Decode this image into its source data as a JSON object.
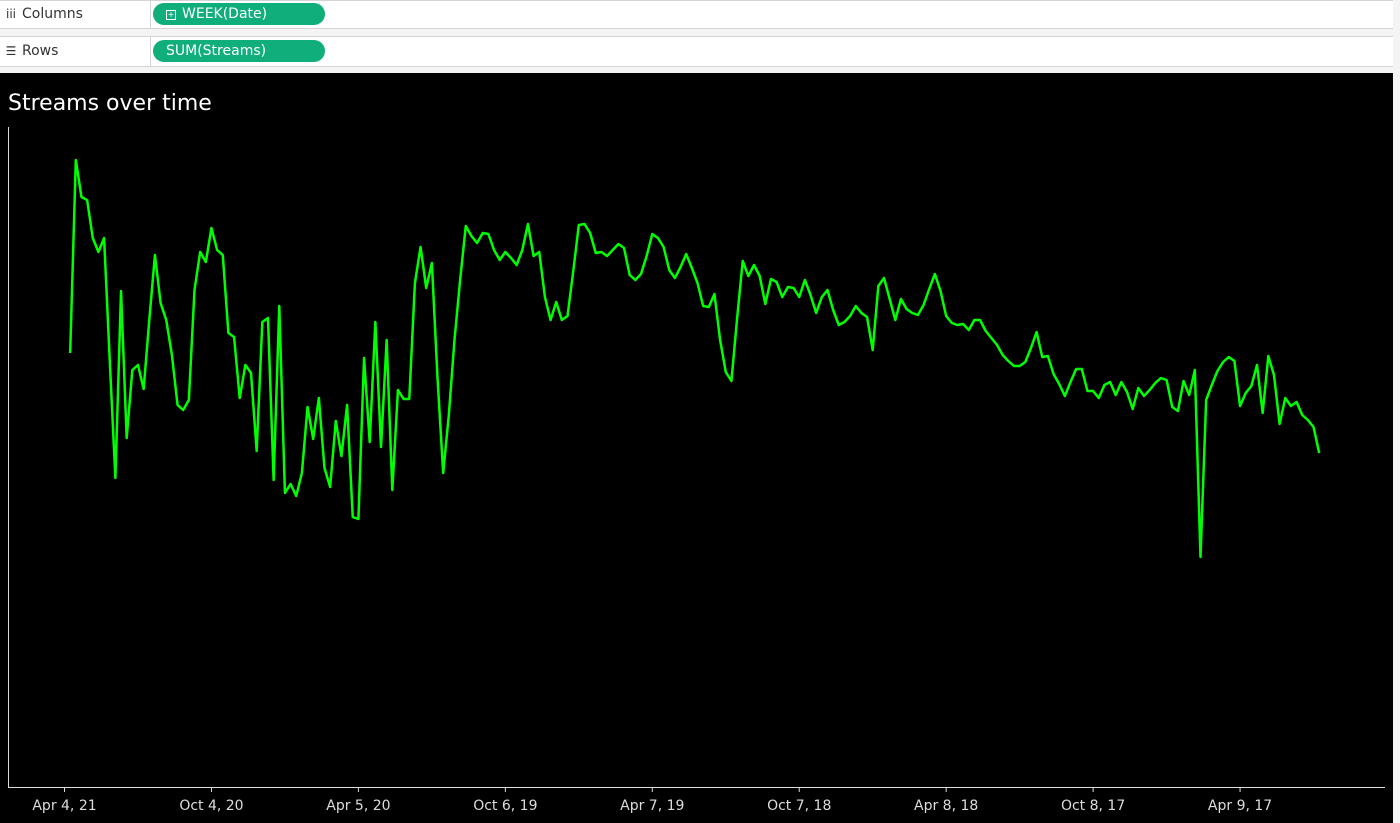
{
  "shelves": {
    "columns": {
      "label": "Columns",
      "pill": "WEEK(Date)"
    },
    "rows": {
      "label": "Rows",
      "pill": "SUM(Streams)"
    }
  },
  "chart_data": {
    "type": "line",
    "title": "Streams over time",
    "color": "#00ff00",
    "grid": false,
    "x": [
      "2021-03-28",
      "2021-03-21",
      "2021-03-14",
      "2021-03-07",
      "2021-02-28",
      "2021-02-21",
      "2021-02-14",
      "2021-02-07",
      "2021-01-31",
      "2021-01-24",
      "2021-01-17",
      "2021-01-10",
      "2021-01-03",
      "2020-12-27",
      "2020-12-20",
      "2020-12-13",
      "2020-12-06",
      "2020-11-29",
      "2020-11-22",
      "2020-11-15",
      "2020-11-08",
      "2020-11-01",
      "2020-10-25",
      "2020-10-18",
      "2020-10-11",
      "2020-10-04",
      "2020-09-27",
      "2020-09-20",
      "2020-09-13",
      "2020-09-06",
      "2020-08-30",
      "2020-08-23",
      "2020-08-16",
      "2020-08-09",
      "2020-08-02",
      "2020-07-26",
      "2020-07-19",
      "2020-07-12",
      "2020-07-05",
      "2020-06-28",
      "2020-06-21",
      "2020-06-14",
      "2020-06-07",
      "2020-05-31",
      "2020-05-24",
      "2020-05-17",
      "2020-05-10",
      "2020-05-03",
      "2020-04-26",
      "2020-04-19",
      "2020-04-12",
      "2020-04-05",
      "2020-03-29",
      "2020-03-22",
      "2020-03-15",
      "2020-03-08",
      "2020-03-01",
      "2020-02-23",
      "2020-02-16",
      "2020-02-09",
      "2020-02-02",
      "2020-01-26",
      "2020-01-19",
      "2020-01-12",
      "2020-01-05",
      "2019-12-29",
      "2019-12-22",
      "2019-12-15",
      "2019-12-08",
      "2019-12-01",
      "2019-11-24",
      "2019-11-17",
      "2019-11-10",
      "2019-11-03",
      "2019-10-27",
      "2019-10-20",
      "2019-10-13",
      "2019-10-06",
      "2019-09-29",
      "2019-09-22",
      "2019-09-15",
      "2019-09-08",
      "2019-09-01",
      "2019-08-25",
      "2019-08-18",
      "2019-08-11",
      "2019-08-04",
      "2019-07-28",
      "2019-07-21",
      "2019-07-14",
      "2019-07-07",
      "2019-06-30",
      "2019-06-23",
      "2019-06-16",
      "2019-06-09",
      "2019-06-02",
      "2019-05-26",
      "2019-05-19",
      "2019-05-12",
      "2019-05-05",
      "2019-04-28",
      "2019-04-21",
      "2019-04-14",
      "2019-04-07",
      "2019-03-31",
      "2019-03-24",
      "2019-03-17",
      "2019-03-10",
      "2019-03-03",
      "2019-02-24",
      "2019-02-17",
      "2019-02-10",
      "2019-02-03",
      "2019-01-27",
      "2019-01-20",
      "2019-01-13",
      "2019-01-06",
      "2018-12-30",
      "2018-12-23",
      "2018-12-16",
      "2018-12-09",
      "2018-12-02",
      "2018-11-25",
      "2018-11-18",
      "2018-11-11",
      "2018-11-04",
      "2018-10-28",
      "2018-10-21",
      "2018-10-14",
      "2018-10-07",
      "2018-09-30",
      "2018-09-23",
      "2018-09-16",
      "2018-09-09",
      "2018-09-02",
      "2018-08-26",
      "2018-08-19",
      "2018-08-12",
      "2018-08-05",
      "2018-07-29",
      "2018-07-22",
      "2018-07-15",
      "2018-07-08",
      "2018-07-01",
      "2018-06-24",
      "2018-06-17",
      "2018-06-10",
      "2018-06-03",
      "2018-05-27",
      "2018-05-20",
      "2018-05-13",
      "2018-05-06",
      "2018-04-29",
      "2018-04-22",
      "2018-04-15",
      "2018-04-08",
      "2018-04-01",
      "2018-03-25",
      "2018-03-18",
      "2018-03-11",
      "2018-03-04",
      "2018-02-25",
      "2018-02-18",
      "2018-02-11",
      "2018-02-04",
      "2018-01-28",
      "2018-01-21",
      "2018-01-14",
      "2018-01-07",
      "2017-12-31",
      "2017-12-24",
      "2017-12-17",
      "2017-12-10",
      "2017-12-03",
      "2017-11-26",
      "2017-11-19",
      "2017-11-12",
      "2017-11-05",
      "2017-10-29",
      "2017-10-22",
      "2017-10-15",
      "2017-10-08",
      "2017-10-01",
      "2017-09-24",
      "2017-09-17",
      "2017-09-10",
      "2017-09-03",
      "2017-08-27",
      "2017-08-20",
      "2017-08-13",
      "2017-08-06",
      "2017-07-30",
      "2017-07-23",
      "2017-07-16",
      "2017-07-09",
      "2017-07-02",
      "2017-06-25",
      "2017-06-18",
      "2017-06-11",
      "2017-06-04",
      "2017-05-28",
      "2017-05-21",
      "2017-05-14",
      "2017-05-07",
      "2017-04-30",
      "2017-04-23",
      "2017-04-16",
      "2017-04-09",
      "2017-04-02",
      "2017-03-26",
      "2017-03-19",
      "2017-03-12",
      "2017-03-05",
      "2017-02-26",
      "2017-02-19",
      "2017-02-12",
      "2017-02-05",
      "2017-01-29",
      "2017-01-22",
      "2017-01-15",
      "2017-01-08",
      "2017-01-01"
    ],
    "values": [
      434,
      627,
      590,
      587,
      549,
      535,
      549,
      427,
      309,
      496,
      349,
      417,
      422,
      398,
      467,
      532,
      484,
      467,
      432,
      382,
      377,
      387,
      497,
      535,
      525,
      559,
      537,
      532,
      454,
      450,
      389,
      422,
      414,
      336,
      465,
      469,
      307,
      481,
      294,
      303,
      291,
      314,
      380,
      348,
      389,
      319,
      300,
      366,
      331,
      382,
      270,
      268,
      429,
      345,
      465,
      340,
      447,
      297,
      397,
      388,
      388,
      504,
      540,
      499,
      524,
      409,
      314,
      372,
      447,
      507,
      561,
      551,
      544,
      554,
      553,
      537,
      527,
      535,
      529,
      522,
      537,
      563,
      531,
      535,
      490,
      467,
      485,
      467,
      471,
      515,
      562,
      563,
      554,
      534,
      535,
      531,
      537,
      543,
      539,
      512,
      507,
      513,
      531,
      553,
      549,
      540,
      517,
      509,
      520,
      533,
      519,
      504,
      481,
      480,
      493,
      447,
      415,
      406,
      468,
      526,
      511,
      522,
      511,
      483,
      508,
      505,
      490,
      500,
      499,
      490,
      507,
      492,
      474,
      490,
      497,
      477,
      462,
      465,
      471,
      481,
      474,
      470,
      437,
      501,
      509,
      488,
      467,
      488,
      478,
      474,
      472,
      482,
      498,
      513,
      496,
      471,
      464,
      462,
      463,
      457,
      467,
      467,
      456,
      449,
      442,
      432,
      426,
      421,
      421,
      425,
      439,
      455,
      430,
      431,
      413,
      403,
      391,
      405,
      418,
      418,
      396,
      396,
      389,
      402,
      405,
      392,
      405,
      395,
      378,
      399,
      391,
      397,
      404,
      409,
      407,
      380,
      376,
      406,
      392,
      417,
      230,
      387,
      402,
      416,
      425,
      430,
      426,
      381,
      394,
      401,
      422,
      374,
      431,
      412,
      363,
      389,
      381,
      385,
      372,
      367,
      360,
      334
    ],
    "xlim": [
      "2021-06-13",
      "2016-10-09"
    ],
    "xticks": [
      {
        "value": "2021-04-04",
        "label": "Apr 4, 21"
      },
      {
        "value": "2020-10-04",
        "label": "Oct 4, 20"
      },
      {
        "value": "2020-04-05",
        "label": "Apr 5, 20"
      },
      {
        "value": "2019-10-06",
        "label": "Oct 6, 19"
      },
      {
        "value": "2019-04-07",
        "label": "Apr 7, 19"
      },
      {
        "value": "2018-10-07",
        "label": "Oct 7, 18"
      },
      {
        "value": "2018-04-08",
        "label": "Apr 8, 18"
      },
      {
        "value": "2017-10-08",
        "label": "Oct 8, 17"
      },
      {
        "value": "2017-04-09",
        "label": "Apr 9, 17"
      }
    ],
    "ylim": [
      0,
      660
    ]
  }
}
